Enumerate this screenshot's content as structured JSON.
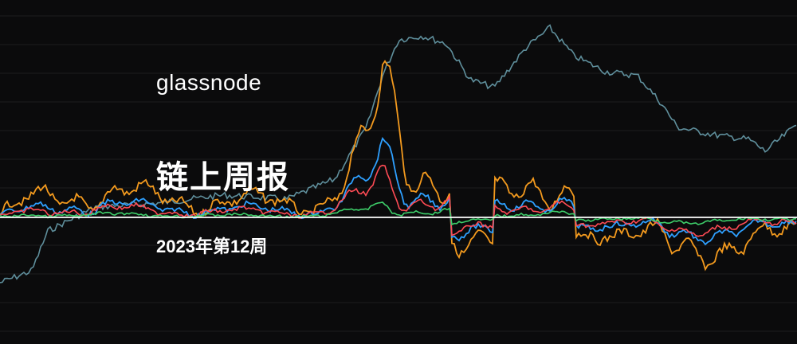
{
  "brand": {
    "name": "glassnode"
  },
  "cover": {
    "title": "链上周报",
    "subtitle": "2023年第12周"
  },
  "background_chart": {
    "colors": {
      "background": "#0b0b0c",
      "price_line": "#5f8f9c",
      "orange": "#f39a1e",
      "blue": "#2ea0ff",
      "red": "#ff4b55",
      "green": "#3ecf6a",
      "baseline": "#ffffff",
      "grid": "#1c1c1e"
    }
  }
}
